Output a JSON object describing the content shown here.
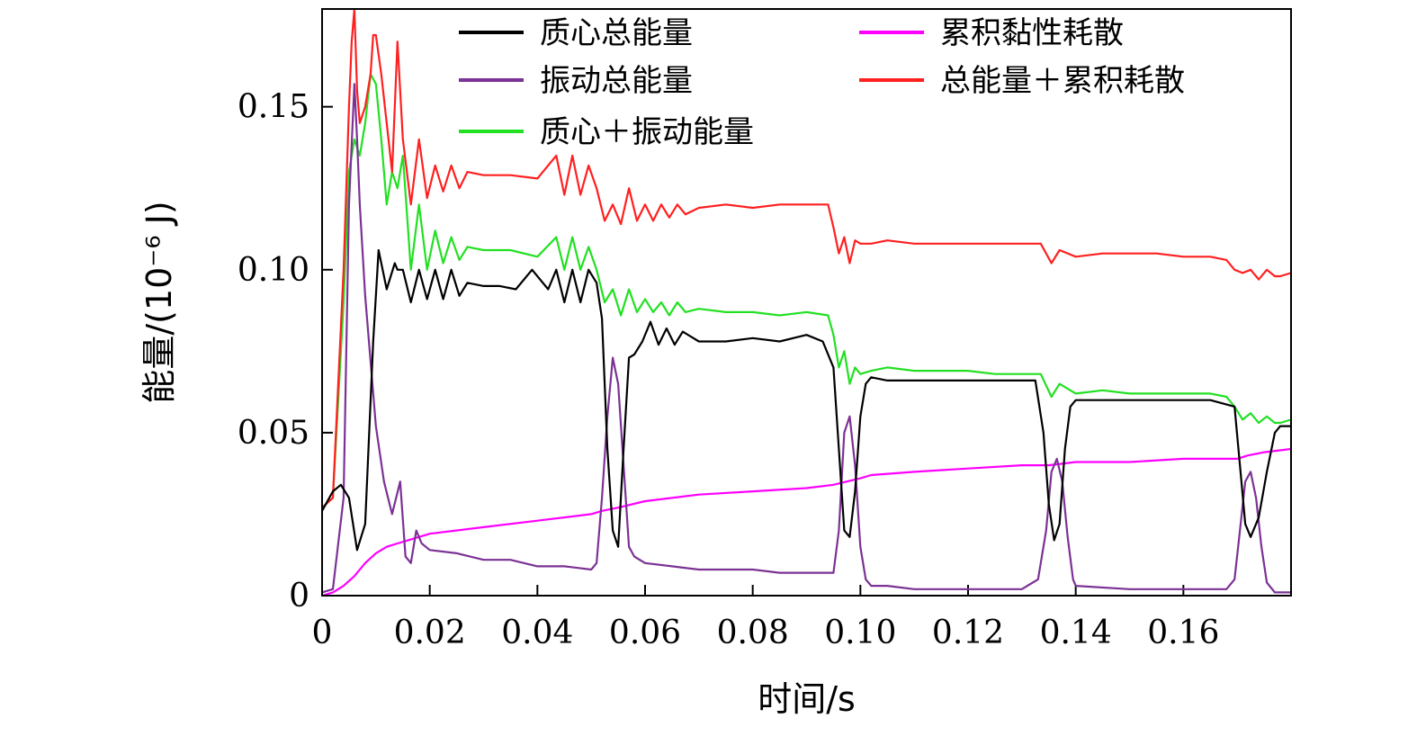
{
  "chart_data": {
    "type": "line",
    "xlabel": "时间/s",
    "ylabel": "能量/(10⁻⁶ J)",
    "xlim": [
      0,
      0.18
    ],
    "ylim": [
      0,
      0.18
    ],
    "x_ticks": [
      0,
      0.02,
      0.04,
      0.06,
      0.08,
      0.1,
      0.12,
      0.14,
      0.16
    ],
    "x_tick_labels": [
      "0",
      "0.02",
      "0.04",
      "0.06",
      "0.08",
      "0.10",
      "0.12",
      "0.14",
      "0.16"
    ],
    "y_ticks": [
      0,
      0.05,
      0.1,
      0.15
    ],
    "y_tick_labels": [
      "0",
      "0.05",
      "0.10",
      "0.15"
    ],
    "legend_position": "top",
    "series": [
      {
        "name": "质心总能量",
        "color": "#000000",
        "x": [
          0,
          0.002,
          0.0035,
          0.005,
          0.0065,
          0.008,
          0.0095,
          0.0105,
          0.012,
          0.0135,
          0.014,
          0.015,
          0.0165,
          0.018,
          0.0195,
          0.021,
          0.0225,
          0.024,
          0.0255,
          0.027,
          0.03,
          0.033,
          0.036,
          0.039,
          0.042,
          0.0435,
          0.045,
          0.0465,
          0.048,
          0.0495,
          0.051,
          0.052,
          0.053,
          0.054,
          0.055,
          0.056,
          0.057,
          0.058,
          0.0595,
          0.061,
          0.0625,
          0.064,
          0.0655,
          0.067,
          0.07,
          0.075,
          0.08,
          0.085,
          0.09,
          0.093,
          0.095,
          0.096,
          0.097,
          0.098,
          0.099,
          0.1,
          0.101,
          0.102,
          0.105,
          0.11,
          0.115,
          0.12,
          0.125,
          0.13,
          0.1325,
          0.134,
          0.135,
          0.136,
          0.137,
          0.138,
          0.139,
          0.14,
          0.141,
          0.145,
          0.15,
          0.155,
          0.16,
          0.165,
          0.1695,
          0.1705,
          0.1715,
          0.1725,
          0.174,
          0.1755,
          0.177,
          0.178,
          0.18
        ],
        "y": [
          0.026,
          0.032,
          0.034,
          0.03,
          0.014,
          0.022,
          0.078,
          0.106,
          0.094,
          0.102,
          0.1,
          0.1,
          0.09,
          0.1,
          0.091,
          0.1,
          0.091,
          0.1,
          0.092,
          0.096,
          0.095,
          0.095,
          0.094,
          0.1,
          0.094,
          0.1,
          0.09,
          0.1,
          0.09,
          0.1,
          0.096,
          0.085,
          0.045,
          0.02,
          0.015,
          0.045,
          0.073,
          0.074,
          0.078,
          0.084,
          0.077,
          0.082,
          0.077,
          0.081,
          0.078,
          0.078,
          0.079,
          0.078,
          0.08,
          0.078,
          0.07,
          0.045,
          0.02,
          0.018,
          0.032,
          0.055,
          0.065,
          0.067,
          0.066,
          0.066,
          0.066,
          0.066,
          0.066,
          0.066,
          0.066,
          0.05,
          0.028,
          0.017,
          0.022,
          0.045,
          0.058,
          0.06,
          0.06,
          0.06,
          0.06,
          0.06,
          0.06,
          0.06,
          0.058,
          0.04,
          0.022,
          0.018,
          0.024,
          0.038,
          0.05,
          0.052,
          0.052
        ]
      },
      {
        "name": "振动总能量",
        "color": "#7b3294",
        "x": [
          0,
          0.002,
          0.004,
          0.005,
          0.006,
          0.0065,
          0.007,
          0.008,
          0.01,
          0.0115,
          0.013,
          0.0145,
          0.0155,
          0.0165,
          0.0175,
          0.0185,
          0.02,
          0.025,
          0.03,
          0.035,
          0.04,
          0.045,
          0.05,
          0.051,
          0.052,
          0.053,
          0.054,
          0.055,
          0.056,
          0.057,
          0.058,
          0.06,
          0.065,
          0.07,
          0.075,
          0.08,
          0.085,
          0.09,
          0.093,
          0.095,
          0.096,
          0.097,
          0.098,
          0.099,
          0.1,
          0.101,
          0.102,
          0.105,
          0.11,
          0.12,
          0.13,
          0.133,
          0.1345,
          0.1355,
          0.1365,
          0.1375,
          0.1385,
          0.1395,
          0.14,
          0.15,
          0.16,
          0.168,
          0.1695,
          0.1705,
          0.1715,
          0.1725,
          0.1735,
          0.1745,
          0.1755,
          0.177,
          0.18
        ],
        "y": [
          0.001,
          0.002,
          0.03,
          0.12,
          0.157,
          0.14,
          0.12,
          0.092,
          0.052,
          0.035,
          0.025,
          0.035,
          0.012,
          0.01,
          0.02,
          0.016,
          0.014,
          0.013,
          0.011,
          0.011,
          0.009,
          0.009,
          0.008,
          0.01,
          0.03,
          0.055,
          0.073,
          0.065,
          0.04,
          0.015,
          0.012,
          0.01,
          0.009,
          0.008,
          0.008,
          0.008,
          0.007,
          0.007,
          0.007,
          0.007,
          0.02,
          0.05,
          0.055,
          0.04,
          0.015,
          0.005,
          0.003,
          0.003,
          0.002,
          0.002,
          0.002,
          0.005,
          0.02,
          0.038,
          0.042,
          0.035,
          0.018,
          0.005,
          0.003,
          0.002,
          0.002,
          0.002,
          0.005,
          0.02,
          0.035,
          0.038,
          0.03,
          0.015,
          0.004,
          0.001,
          0.001
        ]
      },
      {
        "name": "质心＋振动能量",
        "color": "#22e022",
        "x": [
          0,
          0.002,
          0.004,
          0.005,
          0.006,
          0.007,
          0.008,
          0.009,
          0.01,
          0.011,
          0.012,
          0.013,
          0.014,
          0.015,
          0.0165,
          0.018,
          0.0195,
          0.021,
          0.0225,
          0.024,
          0.0255,
          0.027,
          0.03,
          0.035,
          0.04,
          0.0435,
          0.045,
          0.0465,
          0.048,
          0.0495,
          0.051,
          0.0525,
          0.054,
          0.0555,
          0.057,
          0.0585,
          0.06,
          0.0615,
          0.063,
          0.0645,
          0.066,
          0.0675,
          0.07,
          0.075,
          0.08,
          0.085,
          0.09,
          0.094,
          0.095,
          0.096,
          0.097,
          0.098,
          0.099,
          0.1,
          0.102,
          0.105,
          0.11,
          0.115,
          0.12,
          0.125,
          0.13,
          0.1335,
          0.1355,
          0.137,
          0.14,
          0.145,
          0.15,
          0.155,
          0.16,
          0.165,
          0.168,
          0.1695,
          0.171,
          0.1725,
          0.174,
          0.1755,
          0.177,
          0.178,
          0.18
        ],
        "y": [
          0.027,
          0.03,
          0.09,
          0.13,
          0.14,
          0.135,
          0.145,
          0.16,
          0.157,
          0.14,
          0.12,
          0.13,
          0.125,
          0.135,
          0.1,
          0.12,
          0.1,
          0.112,
          0.102,
          0.11,
          0.103,
          0.107,
          0.106,
          0.106,
          0.104,
          0.11,
          0.1,
          0.11,
          0.1,
          0.107,
          0.1,
          0.09,
          0.094,
          0.086,
          0.094,
          0.087,
          0.091,
          0.087,
          0.09,
          0.086,
          0.09,
          0.087,
          0.088,
          0.087,
          0.087,
          0.086,
          0.087,
          0.086,
          0.08,
          0.07,
          0.075,
          0.065,
          0.07,
          0.068,
          0.069,
          0.07,
          0.069,
          0.069,
          0.069,
          0.068,
          0.068,
          0.068,
          0.061,
          0.065,
          0.062,
          0.063,
          0.062,
          0.062,
          0.062,
          0.062,
          0.061,
          0.058,
          0.054,
          0.056,
          0.053,
          0.055,
          0.053,
          0.053,
          0.054
        ]
      },
      {
        "name": "累积黏性耗散",
        "color": "#ff00ff",
        "x": [
          0,
          0.002,
          0.004,
          0.006,
          0.008,
          0.01,
          0.012,
          0.014,
          0.016,
          0.02,
          0.03,
          0.04,
          0.05,
          0.052,
          0.055,
          0.06,
          0.07,
          0.08,
          0.09,
          0.095,
          0.1,
          0.102,
          0.11,
          0.12,
          0.13,
          0.135,
          0.14,
          0.15,
          0.16,
          0.17,
          0.172,
          0.175,
          0.18
        ],
        "y": [
          0,
          0.001,
          0.003,
          0.006,
          0.01,
          0.013,
          0.015,
          0.016,
          0.017,
          0.019,
          0.021,
          0.023,
          0.025,
          0.026,
          0.027,
          0.029,
          0.031,
          0.032,
          0.033,
          0.034,
          0.036,
          0.037,
          0.038,
          0.039,
          0.04,
          0.04,
          0.041,
          0.041,
          0.042,
          0.042,
          0.043,
          0.044,
          0.045
        ]
      },
      {
        "name": "总能量＋累积耗散",
        "color": "#ff2020",
        "x": [
          0,
          0.002,
          0.004,
          0.005,
          0.0055,
          0.006,
          0.0065,
          0.007,
          0.008,
          0.009,
          0.0095,
          0.01,
          0.011,
          0.012,
          0.013,
          0.014,
          0.015,
          0.0165,
          0.018,
          0.0195,
          0.021,
          0.0225,
          0.024,
          0.0255,
          0.027,
          0.03,
          0.035,
          0.04,
          0.0435,
          0.045,
          0.0465,
          0.048,
          0.0495,
          0.051,
          0.0525,
          0.054,
          0.0555,
          0.057,
          0.0585,
          0.06,
          0.0615,
          0.063,
          0.0645,
          0.066,
          0.0675,
          0.07,
          0.075,
          0.08,
          0.085,
          0.09,
          0.094,
          0.095,
          0.096,
          0.097,
          0.098,
          0.099,
          0.1,
          0.102,
          0.105,
          0.11,
          0.115,
          0.12,
          0.125,
          0.13,
          0.1335,
          0.1355,
          0.137,
          0.14,
          0.145,
          0.15,
          0.155,
          0.16,
          0.165,
          0.168,
          0.1695,
          0.171,
          0.1725,
          0.174,
          0.1755,
          0.177,
          0.178,
          0.18
        ],
        "y": [
          0.027,
          0.03,
          0.1,
          0.15,
          0.17,
          0.18,
          0.155,
          0.145,
          0.15,
          0.16,
          0.172,
          0.172,
          0.16,
          0.145,
          0.13,
          0.17,
          0.14,
          0.12,
          0.14,
          0.122,
          0.132,
          0.124,
          0.132,
          0.125,
          0.13,
          0.129,
          0.129,
          0.128,
          0.135,
          0.123,
          0.135,
          0.123,
          0.132,
          0.125,
          0.115,
          0.12,
          0.114,
          0.125,
          0.115,
          0.12,
          0.115,
          0.12,
          0.116,
          0.12,
          0.117,
          0.119,
          0.12,
          0.119,
          0.12,
          0.12,
          0.12,
          0.113,
          0.105,
          0.11,
          0.102,
          0.109,
          0.108,
          0.108,
          0.109,
          0.108,
          0.108,
          0.108,
          0.108,
          0.108,
          0.108,
          0.102,
          0.106,
          0.104,
          0.105,
          0.105,
          0.105,
          0.104,
          0.104,
          0.103,
          0.1,
          0.099,
          0.1,
          0.097,
          0.1,
          0.098,
          0.098,
          0.099
        ]
      }
    ]
  }
}
